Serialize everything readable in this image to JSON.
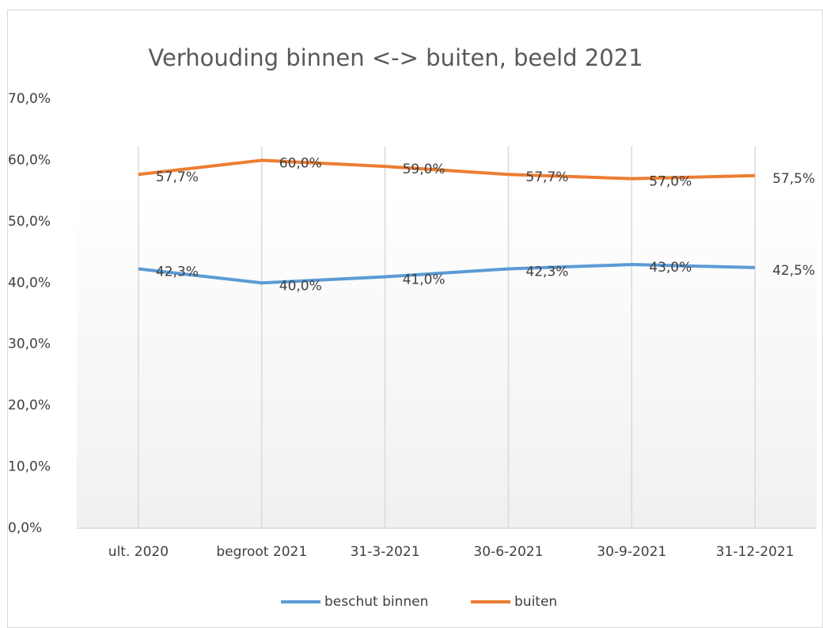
{
  "chart_data": {
    "type": "line",
    "title": "Verhouding binnen <-> buiten, beeld 2021",
    "categories": [
      "ult. 2020",
      "begroot 2021",
      "31-3-2021",
      "30-6-2021",
      "30-9-2021",
      "31-12-2021"
    ],
    "series": [
      {
        "name": "beschut binnen",
        "color": "#5b9bd5",
        "values": [
          42.3,
          40.0,
          41.0,
          42.3,
          43.0,
          42.5
        ],
        "value_labels": [
          "42,3%",
          "40,0%",
          "41,0%",
          "42,3%",
          "43,0%",
          "42,5%"
        ]
      },
      {
        "name": "buiten",
        "color": "#ed7d31",
        "values": [
          57.7,
          60.0,
          59.0,
          57.7,
          57.0,
          57.5
        ],
        "value_labels": [
          "57,7%",
          "60,0%",
          "59,0%",
          "57,7%",
          "57,0%",
          "57,5%"
        ]
      }
    ],
    "ylim": [
      0,
      70
    ],
    "yticks": [
      {
        "value": 0,
        "label": "0,0%"
      },
      {
        "value": 10,
        "label": "10,0%"
      },
      {
        "value": 20,
        "label": "20,0%"
      },
      {
        "value": 30,
        "label": "30,0%"
      },
      {
        "value": 40,
        "label": "40,0%"
      },
      {
        "value": 50,
        "label": "50,0%"
      },
      {
        "value": 60,
        "label": "60,0%"
      },
      {
        "value": 70,
        "label": "70,0%"
      }
    ],
    "grid": true,
    "legend": "bottom"
  }
}
